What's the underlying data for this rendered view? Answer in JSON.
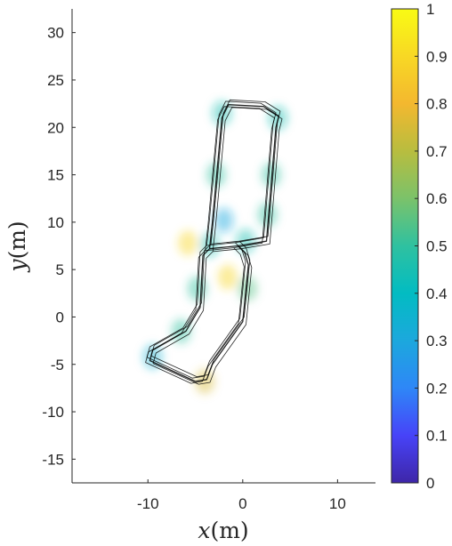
{
  "chart_data": {
    "type": "heatmap",
    "title": "",
    "xlabel_var": "x",
    "xlabel_unit": "(m)",
    "ylabel_var": "y",
    "ylabel_unit": "(m)",
    "xlim": [
      -18,
      14
    ],
    "ylim": [
      -17.5,
      32.5
    ],
    "xticks": [
      -10,
      0,
      10
    ],
    "yticks": [
      -15,
      -10,
      -5,
      0,
      5,
      10,
      15,
      20,
      25,
      30
    ],
    "xtick_labels": [
      "-10",
      "0",
      "10"
    ],
    "ytick_labels": [
      "-15",
      "-10",
      "-5",
      "0",
      "5",
      "10",
      "15",
      "20",
      "25",
      "30"
    ],
    "grid": false,
    "colorbar": {
      "range": [
        0,
        1
      ],
      "ticks": [
        0,
        0.1,
        0.2,
        0.3,
        0.4,
        0.5,
        0.6,
        0.7,
        0.8,
        0.9,
        1
      ],
      "tick_labels": [
        "0",
        "0.1",
        "0.2",
        "0.3",
        "0.4",
        "0.5",
        "0.6",
        "0.7",
        "0.8",
        "0.9",
        "1"
      ],
      "colormap": "parula"
    },
    "trajectory_loops": [
      {
        "name": "",
        "points": [
          [
            -0.5,
            7.5
          ],
          [
            -3.5,
            7.2
          ],
          [
            -4.2,
            6.5
          ],
          [
            -4.5,
            1.0
          ],
          [
            -6.0,
            -1.5
          ],
          [
            -9.5,
            -3.5
          ],
          [
            -9.8,
            -4.6
          ],
          [
            -5.0,
            -6.8
          ],
          [
            -3.8,
            -6.6
          ],
          [
            -3.2,
            -5.0
          ],
          [
            0.0,
            -0.5
          ],
          [
            0.6,
            5.5
          ],
          [
            0.2,
            6.8
          ],
          [
            -0.5,
            7.5
          ],
          [
            2.5,
            8.0
          ],
          [
            3.5,
            20.0
          ],
          [
            3.8,
            21.2
          ],
          [
            2.2,
            22.2
          ],
          [
            -1.5,
            22.4
          ],
          [
            -2.2,
            21.0
          ],
          [
            -3.2,
            10.0
          ],
          [
            -3.5,
            7.2
          ]
        ]
      }
    ],
    "heat_regions": [
      {
        "x": -2.2,
        "y": 21.5,
        "value": 0.45
      },
      {
        "x": 3.7,
        "y": 21.0,
        "value": 0.45
      },
      {
        "x": -2.8,
        "y": 15.0,
        "value": 0.5
      },
      {
        "x": 3.0,
        "y": 15.0,
        "value": 0.5
      },
      {
        "x": -2.0,
        "y": 10.2,
        "value": 0.3
      },
      {
        "x": 2.6,
        "y": 10.8,
        "value": 0.5
      },
      {
        "x": 0.3,
        "y": 8.0,
        "value": 0.45
      },
      {
        "x": -3.5,
        "y": 7.6,
        "value": 0.45
      },
      {
        "x": -4.8,
        "y": 3.0,
        "value": 0.5
      },
      {
        "x": 0.5,
        "y": 3.0,
        "value": 0.55
      },
      {
        "x": -6.5,
        "y": -1.5,
        "value": 0.5
      },
      {
        "x": -9.5,
        "y": -4.2,
        "value": 0.35
      },
      {
        "x": -4.0,
        "y": -6.8,
        "value": 0.75
      },
      {
        "x": -5.8,
        "y": 7.8,
        "value": 0.9
      },
      {
        "x": -1.6,
        "y": 4.2,
        "value": 0.9
      }
    ]
  }
}
